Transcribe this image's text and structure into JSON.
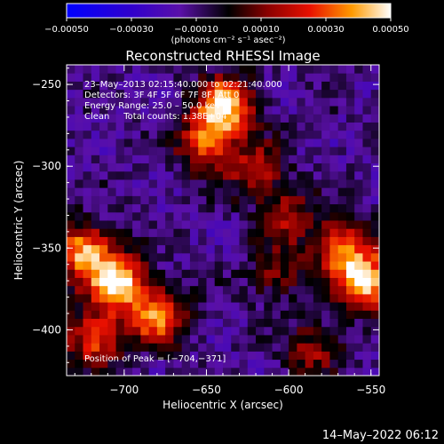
{
  "chart_data": {
    "type": "heatmap",
    "title": "Reconstructed RHESSI Image",
    "xlabel": "Heliocentric X (arcsec)",
    "ylabel": "Heliocentric Y (arcsec)",
    "xlim": [
      -735,
      -545
    ],
    "ylim": [
      -428,
      -238
    ],
    "x_ticks": [
      -700,
      -650,
      -600,
      -550
    ],
    "x_tick_labels": [
      "−700",
      "−650",
      "−600",
      "−550"
    ],
    "y_ticks": [
      -250,
      -300,
      -350,
      -400
    ],
    "y_tick_labels": [
      "−250",
      "−300",
      "−350",
      "−400"
    ],
    "colorbar": {
      "range": [
        -0.0005,
        0.0005
      ],
      "ticks": [
        -0.0005,
        -0.0003,
        -0.0001,
        0.0001,
        0.0003,
        0.0005
      ],
      "tick_labels": [
        "−0.00050",
        "−0.00030",
        "−0.00010",
        "0.00010",
        "0.00030",
        "0.00050"
      ],
      "unit_label": "(photons cm⁻² s⁻¹ asec⁻²)"
    },
    "annotations": [
      "23–May–2013 02:15:40.000 to 02:21:40.000",
      "Detectors: 3F 4F 5F 6F 7F 8F, Att 0",
      "Energy Range: 25.0 – 50.0 keV",
      "Clean     Total counts: 1.38E+04"
    ],
    "peak_label": "Position of Peak = [−704,−371]",
    "peak": [
      -704,
      -371
    ],
    "grid": false,
    "sources": [
      {
        "x": -638,
        "y": -262,
        "intensity": 0.00046
      },
      {
        "x": -650,
        "y": -285,
        "intensity": 0.00032
      },
      {
        "x": -620,
        "y": -302,
        "intensity": 0.00018
      },
      {
        "x": -725,
        "y": -352,
        "intensity": 0.0004
      },
      {
        "x": -704,
        "y": -371,
        "intensity": 0.0005
      },
      {
        "x": -680,
        "y": -392,
        "intensity": 0.00034
      },
      {
        "x": -718,
        "y": -405,
        "intensity": 0.00028
      },
      {
        "x": -553,
        "y": -370,
        "intensity": 0.00048
      },
      {
        "x": -568,
        "y": -350,
        "intensity": 0.0003
      },
      {
        "x": -600,
        "y": -330,
        "intensity": 0.00014
      },
      {
        "x": -608,
        "y": -365,
        "intensity": 0.0001
      },
      {
        "x": -585,
        "y": -412,
        "intensity": 0.00012
      }
    ]
  },
  "footer_date": "14–May–2022 06:12",
  "colors": {
    "background": "#000000",
    "text": "#ffffff"
  }
}
